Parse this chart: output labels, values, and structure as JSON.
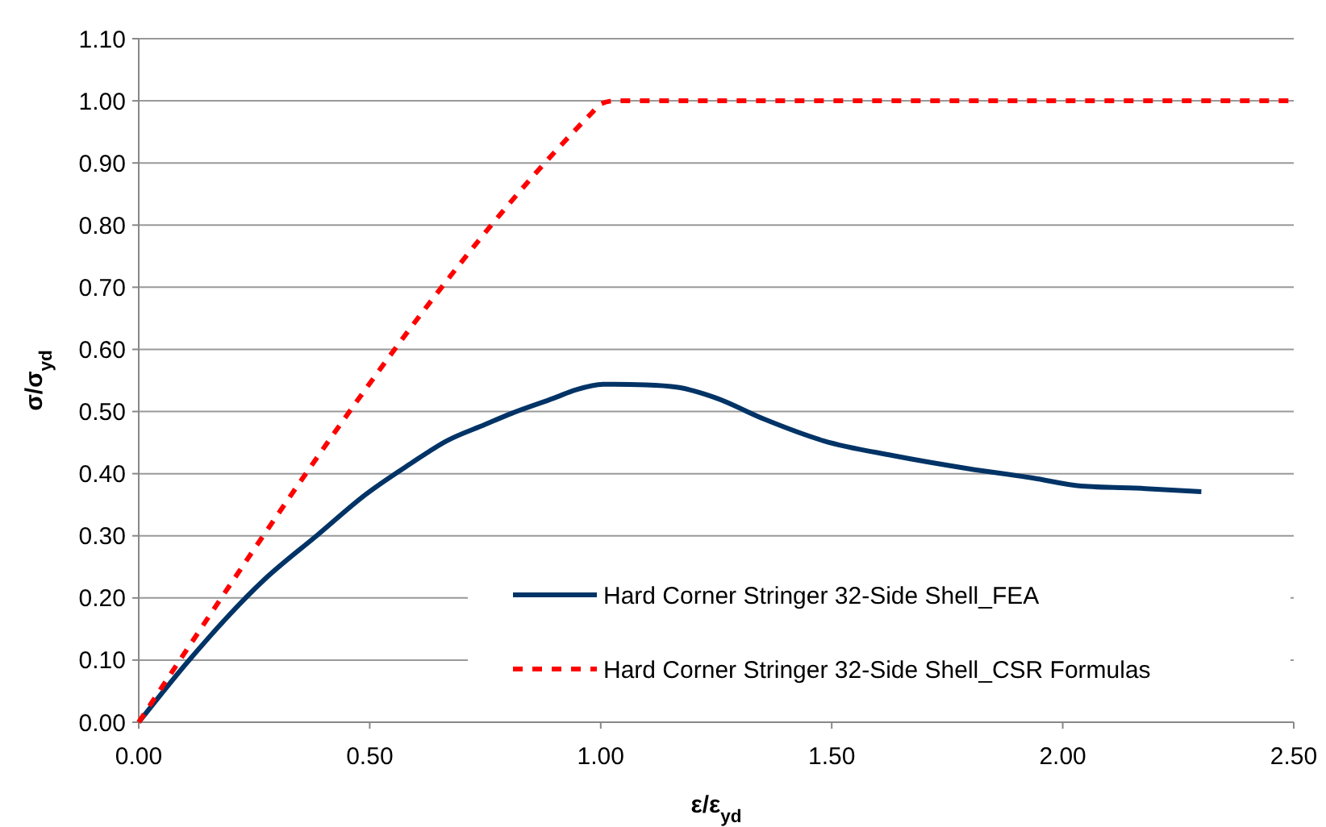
{
  "chart_data": {
    "type": "line",
    "xlabel": "ε/ε$_{yd}$",
    "ylabel": "σ/σ$_{yd}$",
    "xlim": [
      0,
      2.5
    ],
    "xticks": [
      {
        "value": 0,
        "label": "0.00"
      },
      {
        "value": 0.5,
        "label": "0.50"
      },
      {
        "value": 1,
        "label": "1.00"
      },
      {
        "value": 1.5,
        "label": "1.50"
      },
      {
        "value": 2,
        "label": "2.00"
      },
      {
        "value": 2.5,
        "label": "2.50"
      }
    ],
    "ylim": [
      0,
      1.1
    ],
    "yticks": [
      {
        "value": 0,
        "label": "0.00"
      },
      {
        "value": 0.1,
        "label": "0.10"
      },
      {
        "value": 0.2,
        "label": "0.20"
      },
      {
        "value": 0.3,
        "label": "0.30"
      },
      {
        "value": 0.4,
        "label": "0.40"
      },
      {
        "value": 0.5,
        "label": "0.50"
      },
      {
        "value": 0.6,
        "label": "0.60"
      },
      {
        "value": 0.7,
        "label": "0.70"
      },
      {
        "value": 0.8,
        "label": "0.80"
      },
      {
        "value": 0.9,
        "label": "0.90"
      },
      {
        "value": 1,
        "label": "1.00"
      },
      {
        "value": 1.1,
        "label": "1.10"
      }
    ],
    "grid": "y",
    "legend": "bottom right",
    "series": [
      {
        "name": "Hard Corner Stringer 32-Side Shell_FEA",
        "color": "#003366",
        "line_style": "solid",
        "x": [
          0,
          0.108,
          0.271,
          0.388,
          0.492,
          0.586,
          0.667,
          0.749,
          0.807,
          0.9,
          0.946,
          1.005,
          1.098,
          1.167,
          1.249,
          1.353,
          1.482,
          1.633,
          1.796,
          1.935,
          2.04,
          2.18,
          2.3
        ],
        "values": [
          0,
          0.099,
          0.229,
          0.302,
          0.367,
          0.415,
          0.453,
          0.479,
          0.497,
          0.522,
          0.535,
          0.544,
          0.543,
          0.539,
          0.522,
          0.488,
          0.453,
          0.429,
          0.408,
          0.393,
          0.38,
          0.376,
          0.371
        ]
      },
      {
        "name": "Hard Corner Stringer 32-Side Shell_CSR Formulas",
        "color": "#ff0000",
        "line_style": "dashed",
        "x": [
          0,
          0.98,
          1.0,
          1.03,
          2.5
        ],
        "values": [
          0,
          0.98,
          0.995,
          1,
          1
        ]
      }
    ]
  }
}
